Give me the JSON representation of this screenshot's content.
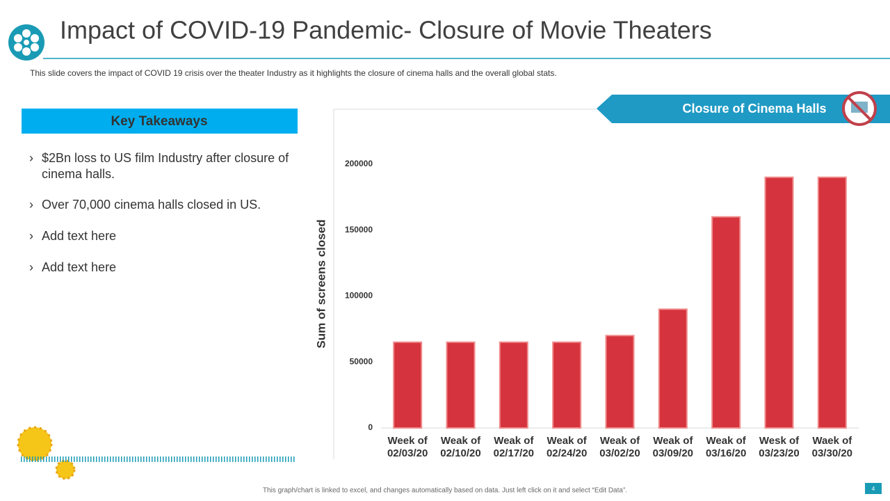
{
  "title": "Impact of COVID-19 Pandemic- Closure of Movie Theaters",
  "subtitle": "This slide covers  the impact of COVID  19 crisis over  the theater Industry  as it highlights the  closure of cinema halls and the overall  global stats.",
  "takeaways": {
    "heading": "Key Takeaways",
    "items": [
      "$2Bn loss to US film Industry after closure of cinema halls.",
      "Over 70,000 cinema halls closed in US.",
      "Add text here",
      "Add text here"
    ]
  },
  "footer": "This graph/chart is linked to excel, and changes automatically based on data. Just left click on it and select “Edit Data”.",
  "page_number": "4",
  "chart_data": {
    "type": "bar",
    "title": "Closure of Cinema Halls",
    "y_label": "Sum of screens closed",
    "categories": [
      "Week of 02/03/20",
      "Weak of 02/10/20",
      "Weak of 02/17/20",
      "Weak of 02/24/20",
      "Weak of 03/02/20",
      "Weak of 03/09/20",
      "Weak of 03/16/20",
      "Wesk of 03/23/20",
      "Waek of 03/30/20"
    ],
    "values": [
      65000,
      65000,
      65000,
      65000,
      70000,
      90000,
      160000,
      190000,
      190000
    ],
    "color": "#d5333d",
    "ylim": [
      0,
      240000
    ],
    "yticks": [
      0,
      50000,
      100000,
      150000,
      200000
    ],
    "grid": false
  }
}
